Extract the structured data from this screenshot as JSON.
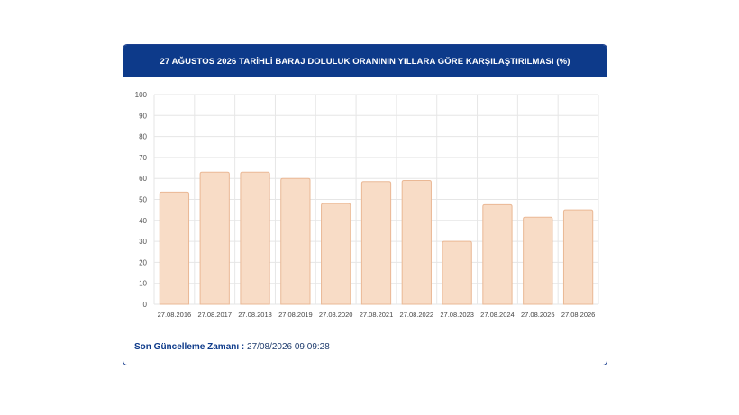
{
  "card": {
    "title": "27 AĞUSTOS 2026 TARİHLİ BARAJ DOLULUK ORANININ YILLARA GÖRE KARŞILAŞTIRILMASI (%)",
    "update_label": "Son Güncelleme Zamanı :",
    "update_value": "27/08/2026 09:09:28"
  },
  "colors": {
    "header": "#0d3a8a",
    "bar_fill": "#f8dcc6",
    "bar_stroke": "#eab895",
    "grid": "#e6e6e6"
  },
  "chart_data": {
    "type": "bar",
    "title": "27 AĞUSTOS 2026 TARİHLİ BARAJ DOLULUK ORANININ YILLARA GÖRE KARŞILAŞTIRILMASI (%)",
    "categories": [
      "27.08.2016",
      "27.08.2017",
      "27.08.2018",
      "27.08.2019",
      "27.08.2020",
      "27.08.2021",
      "27.08.2022",
      "27.08.2023",
      "27.08.2024",
      "27.08.2025",
      "27.08.2026"
    ],
    "values": [
      53.5,
      63,
      63,
      60,
      48,
      58.5,
      59,
      30,
      47.5,
      41.5,
      45
    ],
    "xlabel": "",
    "ylabel": "",
    "ylim": [
      0,
      100
    ],
    "yticks": [
      0,
      10,
      20,
      30,
      40,
      50,
      60,
      70,
      80,
      90,
      100
    ],
    "grid": true,
    "legend": "none"
  }
}
